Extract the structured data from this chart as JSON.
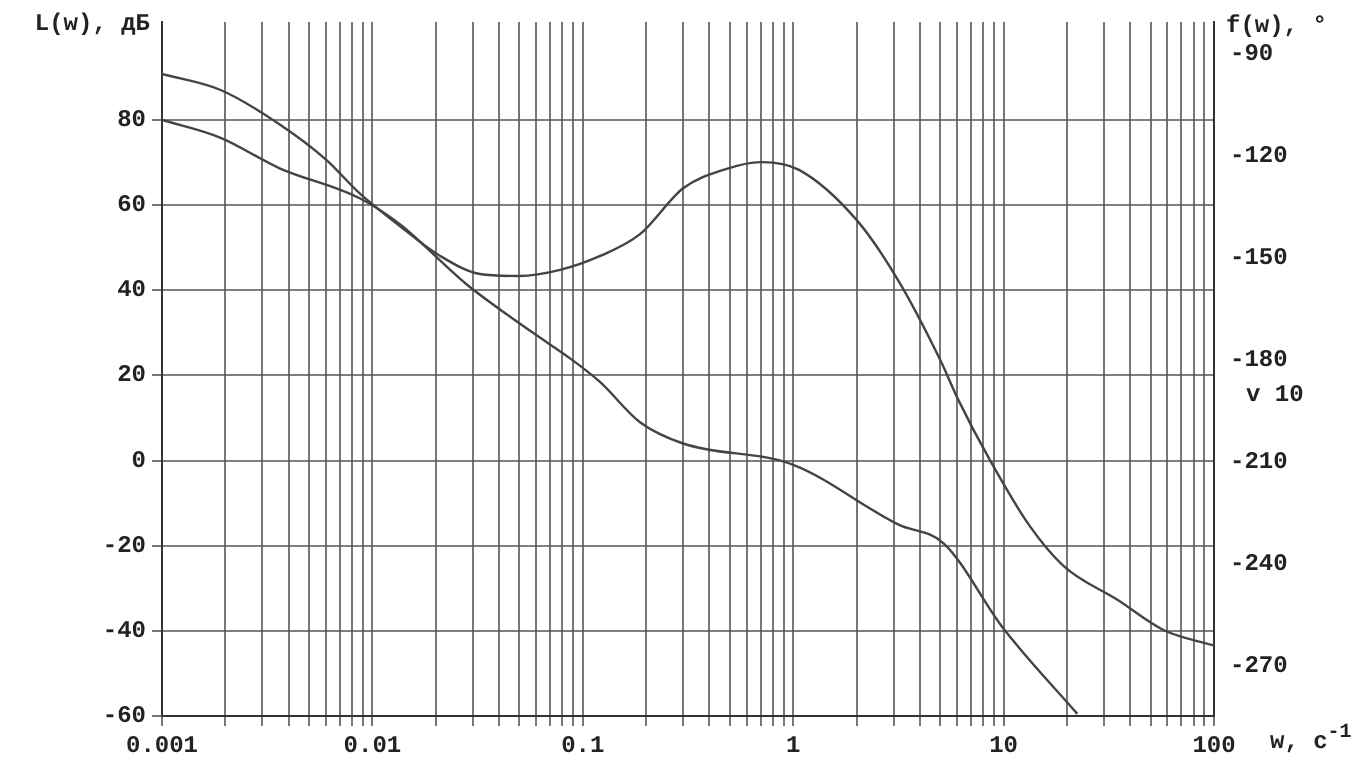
{
  "chart_data": {
    "type": "line",
    "xlabel": "w, с$^{-1}$",
    "ylabel": "L(w), дБ",
    "y2label": "f(w), °",
    "log": "x",
    "grid": true,
    "legend": false,
    "marker": "none",
    "line_style": "solid",
    "xlim": [
      0.001,
      100
    ],
    "xticks": [
      {
        "value": 0.001,
        "label": "0.001"
      },
      {
        "value": 0.002,
        "label": null
      },
      {
        "value": 0.003,
        "label": null
      },
      {
        "value": 0.004,
        "label": null
      },
      {
        "value": 0.005,
        "label": null
      },
      {
        "value": 0.006,
        "label": null
      },
      {
        "value": 0.007,
        "label": null
      },
      {
        "value": 0.008,
        "label": null
      },
      {
        "value": 0.009,
        "label": null
      },
      {
        "value": 0.01,
        "label": "0.01"
      },
      {
        "value": 0.02,
        "label": null
      },
      {
        "value": 0.03,
        "label": null
      },
      {
        "value": 0.04,
        "label": null
      },
      {
        "value": 0.05,
        "label": null
      },
      {
        "value": 0.06,
        "label": null
      },
      {
        "value": 0.07,
        "label": null
      },
      {
        "value": 0.08,
        "label": null
      },
      {
        "value": 0.09,
        "label": null
      },
      {
        "value": 0.1,
        "label": "0.1"
      },
      {
        "value": 0.2,
        "label": null
      },
      {
        "value": 0.3,
        "label": null
      },
      {
        "value": 0.4,
        "label": null
      },
      {
        "value": 0.5,
        "label": null
      },
      {
        "value": 0.6,
        "label": null
      },
      {
        "value": 0.7,
        "label": null
      },
      {
        "value": 0.8,
        "label": null
      },
      {
        "value": 0.9,
        "label": null
      },
      1,
      {
        "value": 2,
        "label": null
      },
      {
        "value": 3,
        "label": null
      },
      {
        "value": 4,
        "label": null
      },
      {
        "value": 5,
        "label": null
      },
      {
        "value": 6,
        "label": null
      },
      {
        "value": 7,
        "label": null
      },
      {
        "value": 8,
        "label": null
      },
      {
        "value": 9,
        "label": null
      },
      10,
      {
        "value": 20,
        "label": null
      },
      {
        "value": 30,
        "label": null
      },
      {
        "value": 40,
        "label": null
      },
      {
        "value": 50,
        "label": null
      },
      {
        "value": 60,
        "label": null
      },
      {
        "value": 70,
        "label": null
      },
      {
        "value": 80,
        "label": null
      },
      {
        "value": 90,
        "label": null
      },
      100
    ],
    "ylim": [
      -60,
      103
    ],
    "yticks": [
      -60,
      -40,
      -20,
      0,
      20,
      40,
      60,
      80
    ],
    "y2lim": [
      -284.7,
      -80.6
    ],
    "y2ticks": [
      -270,
      -240,
      -210,
      -180,
      -150,
      -120,
      -90
    ],
    "annotations": [
      "v 10"
    ],
    "series": [
      {
        "color": "#444444",
        "x": [
          0.001,
          0.0019,
          0.0036,
          0.0087,
          0.0135,
          0.028,
          0.058,
          0.087,
          0.121,
          0.187,
          0.3,
          1,
          3.15,
          5.2,
          10,
          22.4
        ],
        "values": [
          80,
          75.8,
          68.7,
          61.6,
          55.5,
          41.4,
          30,
          24,
          18.4,
          9,
          4,
          -1,
          -15,
          -19.5,
          -39.5,
          -59.5
        ]
      },
      {
        "color": "#444444",
        "axis": "y2",
        "x": [
          0.001,
          0.0019,
          0.0036,
          0.006,
          0.0087,
          0.0135,
          0.021,
          0.0324,
          0.05,
          0.078,
          0.121,
          0.187,
          0.3,
          0.47,
          0.7,
          1.06,
          2,
          3.15,
          5,
          6.1,
          8.6,
          13.3,
          19.3,
          34.9,
          57.5,
          100
        ],
        "values": [
          -95.9,
          -100.6,
          -110.6,
          -121,
          -131,
          -140.6,
          -149.4,
          -154.7,
          -155.3,
          -153.5,
          -149.4,
          -143,
          -129.5,
          -124,
          -121.8,
          -124,
          -138.8,
          -156.5,
          -180,
          -191.8,
          -209.4,
          -228.8,
          -240.6,
          -250.6,
          -259.4,
          -264
        ]
      }
    ]
  }
}
